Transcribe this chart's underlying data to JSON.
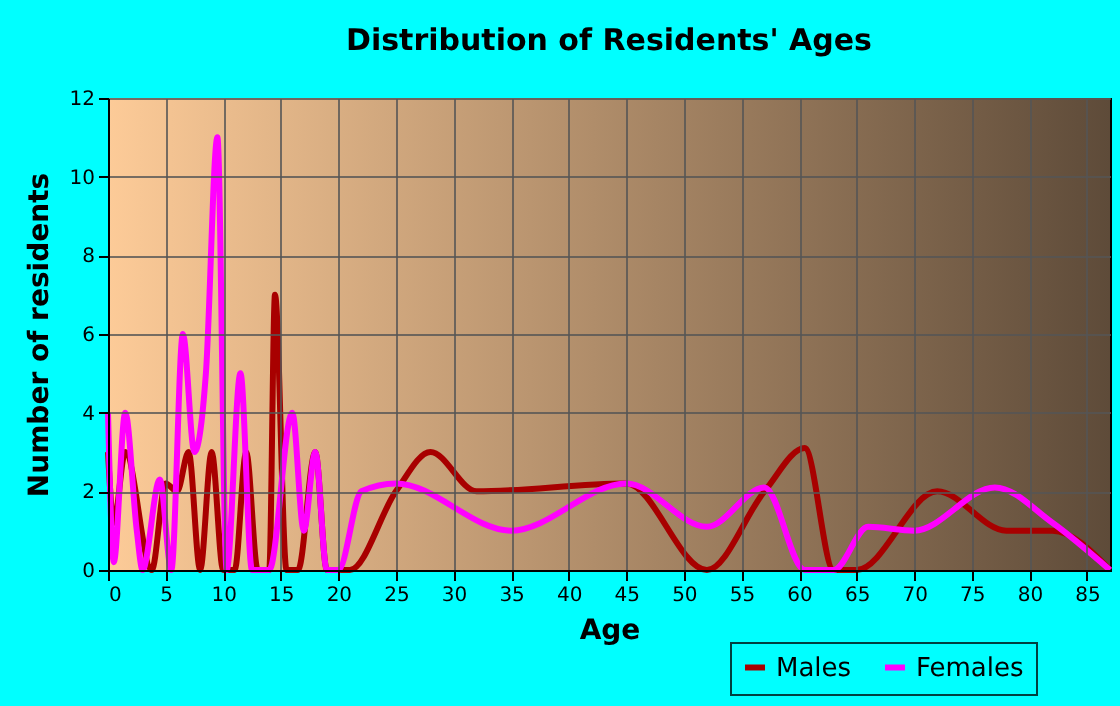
{
  "chart_data": {
    "type": "line",
    "title": "Distribution of Residents' Ages",
    "xlabel": "Age",
    "ylabel": "Number of residents",
    "series": [
      {
        "name": "Males",
        "color": "#a80000",
        "x": [
          0,
          0.5,
          1.5,
          3.8,
          5,
          6,
          7,
          8,
          9,
          10,
          11,
          12,
          13,
          14,
          14.5,
          15.5,
          16.5,
          18,
          19,
          20,
          21,
          25,
          28,
          32,
          45,
          52,
          57,
          60.5,
          63,
          65,
          72,
          78,
          82,
          87
        ],
        "values": [
          3,
          1.2,
          3,
          0,
          2.2,
          2,
          3,
          0,
          3,
          0,
          0,
          3,
          0,
          0,
          7,
          0,
          0,
          3,
          0,
          0,
          0,
          2,
          3,
          2,
          2.2,
          0,
          2,
          3.1,
          0,
          0,
          2,
          1,
          1,
          0
        ]
      },
      {
        "name": "Females",
        "color": "#ff00ff",
        "x": [
          0,
          0.5,
          1.5,
          2.5,
          3,
          4.5,
          5.5,
          6.5,
          7.5,
          8.5,
          9.5,
          10.3,
          11.5,
          12.5,
          14,
          16,
          17,
          18,
          19,
          20,
          22,
          25,
          35,
          45,
          52,
          57,
          60.5,
          63,
          66,
          70,
          77,
          82,
          87
        ],
        "values": [
          4,
          0.2,
          4,
          1,
          0,
          2.3,
          0,
          6,
          3,
          5,
          11,
          0,
          5,
          0,
          0,
          4,
          1,
          3,
          0,
          0,
          2,
          2.2,
          1,
          2.2,
          1.1,
          2.1,
          0,
          0,
          1.1,
          1,
          2.1,
          1.2,
          0
        ]
      }
    ],
    "xlim": [
      0,
      87
    ],
    "xticks": [
      0,
      5,
      10,
      15,
      20,
      25,
      30,
      35,
      40,
      45,
      50,
      55,
      60,
      65,
      70,
      75,
      80,
      85
    ],
    "ylim": [
      0,
      12
    ],
    "yticks": [
      0,
      2,
      4,
      6,
      8,
      10,
      12
    ],
    "grid": true,
    "legend": "bottom right",
    "marker": "none",
    "line_style": "solid"
  }
}
